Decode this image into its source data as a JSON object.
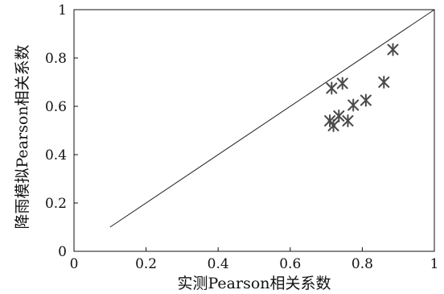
{
  "chart_data": {
    "type": "scatter",
    "title": "",
    "xlabel": "实测Pearson相关系数",
    "ylabel": "降雨模拟Pearson相关系数",
    "xlim": [
      0,
      1
    ],
    "ylim": [
      0,
      1
    ],
    "x_ticks": [
      0,
      0.2,
      0.4,
      0.6,
      0.8,
      1
    ],
    "y_ticks": [
      0,
      0.2,
      0.4,
      0.6,
      0.8,
      1
    ],
    "x_tick_labels": [
      "0",
      "0.2",
      "0.4",
      "0.6",
      "0.8",
      "1"
    ],
    "y_tick_labels": [
      "0",
      "0.2",
      "0.4",
      "0.6",
      "0.8",
      "1"
    ],
    "grid": false,
    "legend": "none",
    "marker": "asterisk",
    "marker_color": "#4a4a4a",
    "reference_line": {
      "x": [
        0.1,
        1.0
      ],
      "y": [
        0.1,
        1.0
      ]
    },
    "series": [
      {
        "x": [
          0.71,
          0.715,
          0.72,
          0.735,
          0.745,
          0.76,
          0.775,
          0.81,
          0.86,
          0.885
        ],
        "y": [
          0.54,
          0.675,
          0.52,
          0.56,
          0.695,
          0.54,
          0.605,
          0.625,
          0.7,
          0.835
        ]
      }
    ]
  }
}
